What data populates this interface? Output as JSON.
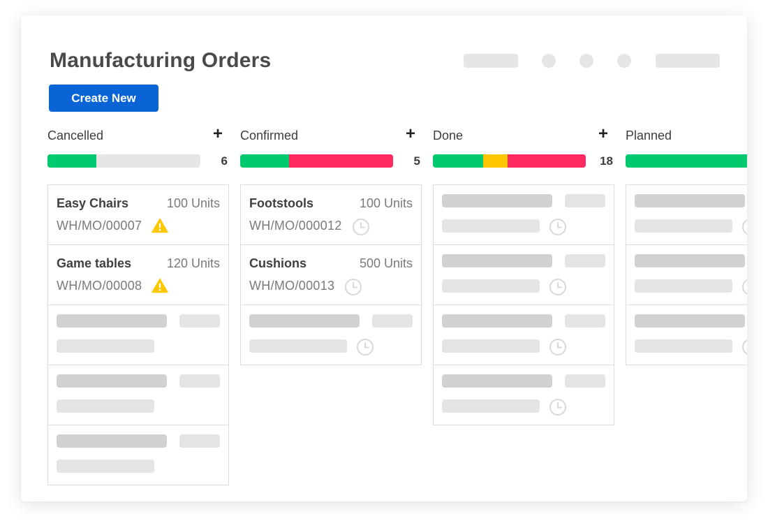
{
  "page": {
    "title": "Manufacturing Orders",
    "create_button": "Create New"
  },
  "colors": {
    "primary": "#0a64d6",
    "green": "#00c96f",
    "red": "#ff2a5f",
    "yellow": "#ffc700",
    "track": "#e6e6e6"
  },
  "columns": [
    {
      "title": "Cancelled",
      "add": "+",
      "count": "6",
      "progress": [
        {
          "color": "green",
          "fraction": 0.32
        }
      ],
      "items": [
        {
          "name": "Easy Chairs",
          "units": "100 Units",
          "ref": "WH/MO/00007",
          "icon": "warning-icon"
        },
        {
          "name": "Game tables",
          "units": "120 Units",
          "ref": "WH/MO/00008",
          "icon": "warning-icon"
        }
      ],
      "placeholders": 3,
      "placeholder_clock": false
    },
    {
      "title": "Confirmed",
      "add": "+",
      "count": "5",
      "progress": [
        {
          "color": "green",
          "fraction": 0.32
        },
        {
          "color": "red",
          "fraction": 0.68
        }
      ],
      "items": [
        {
          "name": "Footstools",
          "units": "100 Units",
          "ref": "WH/MO/000012",
          "icon": "clock-icon"
        },
        {
          "name": "Cushions",
          "units": "500 Units",
          "ref": "WH/MO/00013",
          "icon": "clock-icon"
        }
      ],
      "placeholders": 1,
      "placeholder_clock": true
    },
    {
      "title": "Done",
      "add": "+",
      "count": "18",
      "progress": [
        {
          "color": "green",
          "fraction": 0.33
        },
        {
          "color": "yellow",
          "fraction": 0.16
        },
        {
          "color": "red",
          "fraction": 0.51
        }
      ],
      "items": [],
      "placeholders": 4,
      "placeholder_clock": true
    },
    {
      "title": "Planned",
      "add": "",
      "count": "",
      "progress": [
        {
          "color": "green",
          "fraction": 1.0
        }
      ],
      "items": [],
      "placeholders": 3,
      "placeholder_clock": true
    }
  ]
}
